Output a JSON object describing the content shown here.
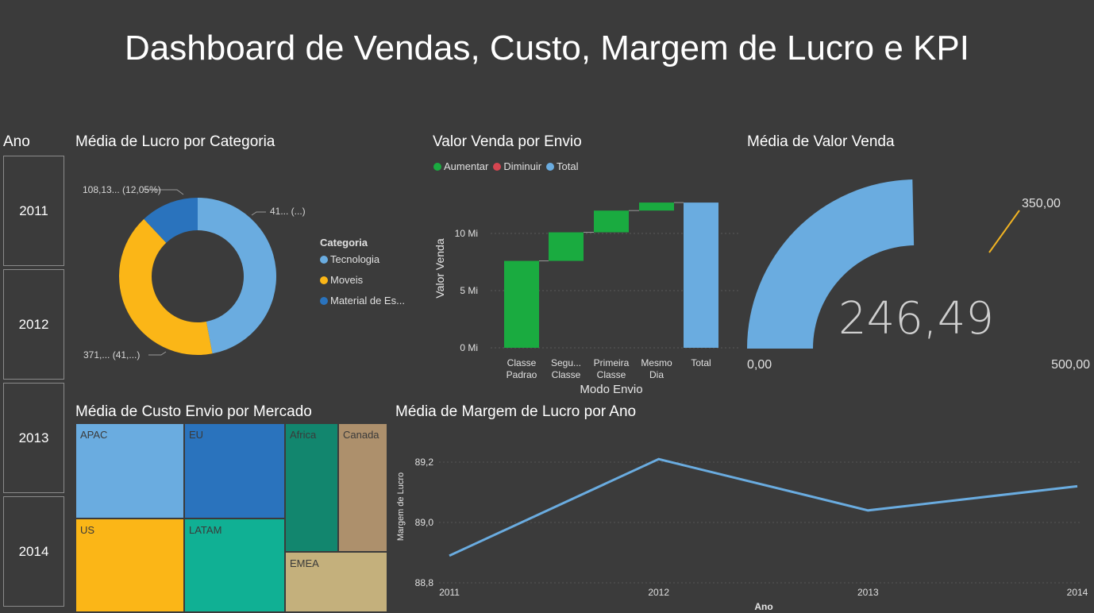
{
  "page": {
    "title": "Dashboard de Vendas, Custo, Margem de Lucro e KPI",
    "colors": {
      "background": "#3b3b3b",
      "aumentar": "#1aab40",
      "diminuir": "#d64550",
      "total": "#6aace0",
      "kpi_target": "#f0b323"
    }
  },
  "slicer": {
    "title": "Ano",
    "options": [
      "2011",
      "2012",
      "2013",
      "2014"
    ]
  },
  "donut": {
    "title": "Média de Lucro por Categoria",
    "legend_title": "Categoria",
    "legend_items": [
      {
        "label": "Tecnologia",
        "color": "#6aace0"
      },
      {
        "label": "Moveis",
        "color": "#fbb617"
      },
      {
        "label": "Material de Es...",
        "color": "#2a73bd"
      }
    ],
    "labels": {
      "tecnologia": "41... (...)",
      "moveis": "371,... (41,...)",
      "material": "108,13... (12,05%)"
    }
  },
  "waterfall": {
    "title": "Valor Venda por Envio",
    "legend": [
      {
        "label": "Aumentar",
        "color": "#1aab40"
      },
      {
        "label": "Diminuir",
        "color": "#d64550"
      },
      {
        "label": "Total",
        "color": "#6aace0"
      }
    ],
    "ylabel": "Valor Venda",
    "xlabel": "Modo Envio",
    "yticks": [
      "0 Mi",
      "5 Mi",
      "10 Mi"
    ]
  },
  "gauge": {
    "title": "Média de Valor Venda",
    "value_label": "246,49",
    "min_label": "0,00",
    "max_label": "500,00",
    "target_label": "350,00"
  },
  "treemap": {
    "title": "Média de Custo Envio por Mercado",
    "items": [
      {
        "label": "APAC",
        "color": "#6aace0"
      },
      {
        "label": "EU",
        "color": "#2a73bd"
      },
      {
        "label": "Africa",
        "color": "#12866e"
      },
      {
        "label": "Canada",
        "color": "#ad906c"
      },
      {
        "label": "US",
        "color": "#fbb617"
      },
      {
        "label": "LATAM",
        "color": "#10b094"
      },
      {
        "label": "EMEA",
        "color": "#c4b07c"
      }
    ]
  },
  "line": {
    "title": "Média de Margem de Lucro por Ano"
  },
  "chart_data": [
    {
      "type": "pie",
      "title": "Média de Lucro por Categoria",
      "categories": [
        "Tecnologia",
        "Moveis",
        "Material de Es..."
      ],
      "values": [
        0.47,
        0.41,
        0.12
      ],
      "unit": "share"
    },
    {
      "type": "bar",
      "subtype": "waterfall",
      "title": "Valor Venda por Envio",
      "xlabel": "Modo Envio",
      "ylabel": "Valor Venda",
      "categories": [
        "Classe Padrao",
        "Segu... Classe",
        "Primeira Classe",
        "Mesmo Dia",
        "Total"
      ],
      "x_tick_lines": [
        [
          "Classe",
          "Padrao"
        ],
        [
          "Segu...",
          "Classe"
        ],
        [
          "Primeira",
          "Classe"
        ],
        [
          "Mesmo",
          "Dia"
        ],
        [
          "Total"
        ]
      ],
      "values": [
        7.6,
        2.5,
        1.9,
        0.7,
        12.7
      ],
      "kinds": [
        "aumentar",
        "aumentar",
        "aumentar",
        "aumentar",
        "total"
      ],
      "ylim": [
        0,
        13
      ],
      "yticks": [
        0,
        5,
        10
      ],
      "grid": true
    },
    {
      "type": "line",
      "title": "Média de Margem de Lucro por Ano",
      "xlabel": "Ano",
      "ylabel": "Margem de Lucro",
      "x": [
        "2011",
        "2012",
        "2013",
        "2014"
      ],
      "values": [
        88.89,
        89.21,
        89.04,
        89.12
      ],
      "ylim": [
        88.8,
        89.3
      ],
      "yticks": [
        "88,8",
        "89,0",
        "89,2"
      ],
      "color": "#6aace0",
      "grid": true
    }
  ]
}
